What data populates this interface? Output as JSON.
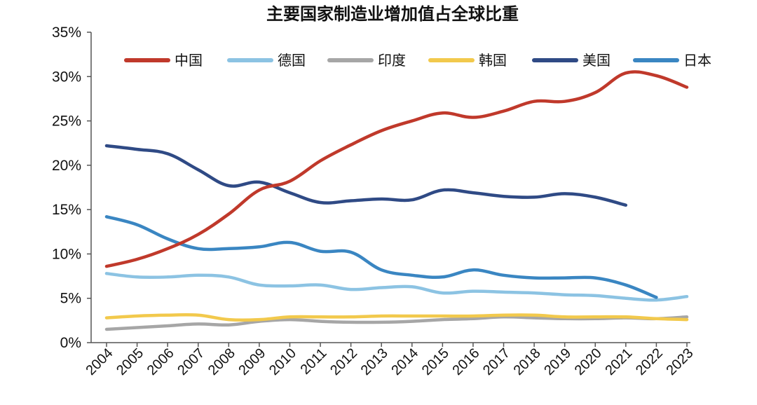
{
  "chart_data": {
    "type": "line",
    "title": "主要国家制造业增加值占全球比重",
    "xlabel": "",
    "ylabel": "",
    "ylim": [
      0,
      35
    ],
    "yticks": [
      0,
      5,
      10,
      15,
      20,
      25,
      30,
      35
    ],
    "ytick_labels": [
      "0%",
      "5%",
      "10%",
      "15%",
      "20%",
      "25%",
      "30%",
      "35%"
    ],
    "categories": [
      "2004",
      "2005",
      "2006",
      "2007",
      "2008",
      "2009",
      "2010",
      "2011",
      "2012",
      "2013",
      "2014",
      "2015",
      "2016",
      "2017",
      "2018",
      "2019",
      "2020",
      "2021",
      "2022",
      "2023"
    ],
    "grid": false,
    "legend_position": "top",
    "series": [
      {
        "name": "中国",
        "color": "#c0392b",
        "values": [
          8.6,
          9.4,
          10.6,
          12.2,
          14.5,
          17.2,
          18.2,
          20.5,
          22.3,
          23.9,
          25.0,
          25.9,
          25.4,
          26.1,
          27.2,
          27.2,
          28.2,
          30.4,
          30.1,
          28.8
        ]
      },
      {
        "name": "德国",
        "color": "#8cc3e3",
        "values": [
          7.8,
          7.4,
          7.4,
          7.6,
          7.4,
          6.5,
          6.4,
          6.5,
          6.0,
          6.2,
          6.3,
          5.6,
          5.8,
          5.7,
          5.6,
          5.4,
          5.3,
          5.0,
          4.8,
          5.2
        ]
      },
      {
        "name": "印度",
        "color": "#a6a6a6",
        "values": [
          1.5,
          1.7,
          1.9,
          2.1,
          2.0,
          2.4,
          2.6,
          2.4,
          2.3,
          2.3,
          2.4,
          2.6,
          2.7,
          2.9,
          2.8,
          2.7,
          2.7,
          2.8,
          2.7,
          2.9
        ]
      },
      {
        "name": "韩国",
        "color": "#f2c94c",
        "values": [
          2.8,
          3.0,
          3.1,
          3.1,
          2.6,
          2.6,
          2.9,
          2.9,
          2.9,
          3.0,
          3.0,
          3.0,
          3.0,
          3.1,
          3.1,
          2.9,
          2.9,
          2.9,
          2.7,
          2.6
        ]
      },
      {
        "name": "美国",
        "color": "#2f4a85",
        "values": [
          22.2,
          21.8,
          21.3,
          19.5,
          17.7,
          18.1,
          16.9,
          15.8,
          16.0,
          16.2,
          16.1,
          17.2,
          16.9,
          16.5,
          16.4,
          16.8,
          16.4,
          15.5,
          null,
          null
        ]
      },
      {
        "name": "日本",
        "color": "#3a86c2",
        "values": [
          14.2,
          13.3,
          11.7,
          10.6,
          10.6,
          10.8,
          11.3,
          10.3,
          10.2,
          8.2,
          7.6,
          7.4,
          8.2,
          7.6,
          7.3,
          7.3,
          7.3,
          6.5,
          5.1,
          null
        ]
      }
    ]
  }
}
